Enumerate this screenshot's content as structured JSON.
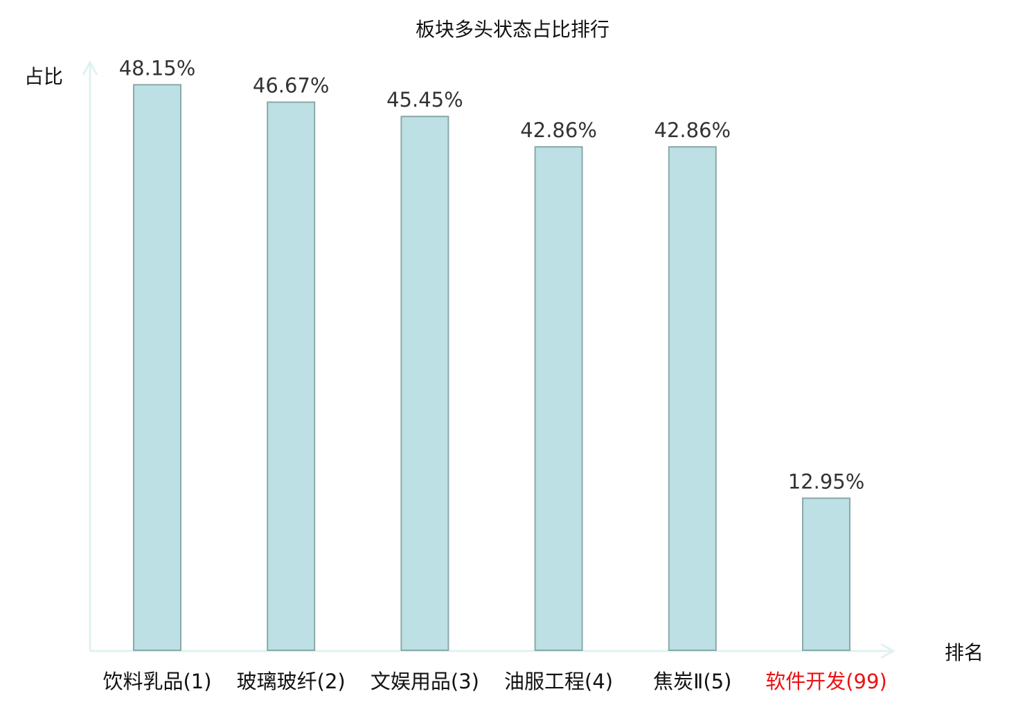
{
  "chart_data": {
    "type": "bar",
    "title": "板块多头状态占比排行",
    "ylabel": "占比",
    "xlabel": "排名",
    "ylim": [
      0,
      50
    ],
    "grid": false,
    "categories": [
      "饮料乳品(1)",
      "玻璃玻纤(2)",
      "文娱用品(3)",
      "油服工程(4)",
      "焦炭Ⅱ(5)",
      "软件开发(99)"
    ],
    "values": [
      48.15,
      46.67,
      45.45,
      42.86,
      42.86,
      12.95
    ],
    "data_labels": [
      "48.15%",
      "46.67%",
      "45.45%",
      "42.86%",
      "42.86%",
      "12.95%"
    ],
    "highlighted_category": "软件开发(99)",
    "colors": {
      "bar_fill": "#bce0e3",
      "bar_stroke": "#8aa8a8",
      "axis": "#e0f2f0",
      "label_text": "#333333",
      "category_text": "#111111",
      "highlight_text": "#ee1111"
    }
  }
}
